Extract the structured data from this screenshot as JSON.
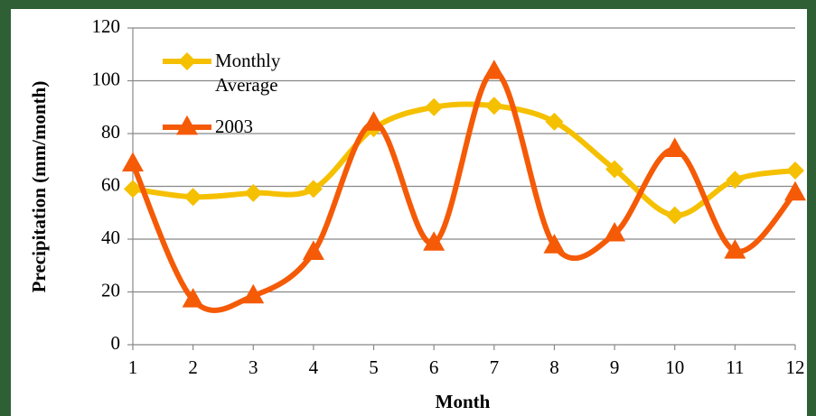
{
  "chart_data": {
    "type": "line",
    "x": [
      1,
      2,
      3,
      4,
      5,
      6,
      7,
      8,
      9,
      10,
      11,
      12
    ],
    "xlim": [
      1,
      12
    ],
    "xticks": [
      1,
      2,
      3,
      4,
      5,
      6,
      7,
      8,
      9,
      10,
      11,
      12
    ],
    "ylim": [
      0,
      120
    ],
    "yticks": [
      0,
      20,
      40,
      60,
      80,
      100,
      120
    ],
    "xlabel": "Month",
    "ylabel": "Precipitation (mm/month)",
    "grid": true,
    "legend": "upper left",
    "series": [
      {
        "name": "Monthly Average",
        "color": "#f5c000",
        "marker": "diamond",
        "values": [
          59,
          56,
          57.5,
          59,
          82,
          90,
          90.5,
          84.5,
          66.5,
          49,
          62.5,
          66
        ]
      },
      {
        "name": "2003",
        "color": "#f55a06",
        "marker": "triangle",
        "values": [
          68.5,
          17,
          18.5,
          35,
          84,
          38.5,
          103.5,
          37.5,
          42,
          74,
          35.5,
          57.5
        ]
      }
    ]
  }
}
